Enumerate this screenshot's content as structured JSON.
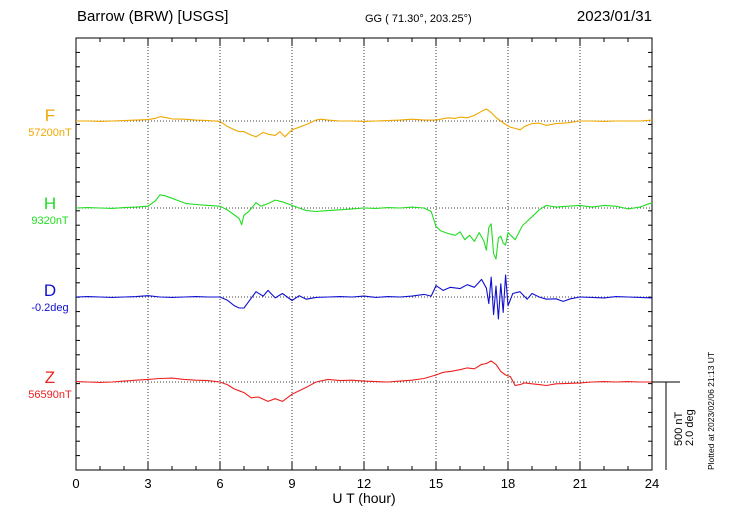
{
  "header": {
    "station": "Barrow (BRW)  [USGS]",
    "coords": "GG ( 71.30°, 203.25°)",
    "date": "2023/01/31"
  },
  "side": {
    "plotted": "Plotted at 2023/02/06 21:13 UT",
    "scale_nt": "500 nT",
    "scale_deg": "2.0 deg"
  },
  "chart_data": {
    "type": "line",
    "xlabel": "U T (hour)",
    "xlim": [
      0,
      24
    ],
    "x_ticks": [
      "0",
      "3",
      "6",
      "9",
      "12",
      "15",
      "18",
      "21",
      "24"
    ],
    "grid": true,
    "series": [
      {
        "name": "F",
        "baseline": "57200nT",
        "color": "#f0a800",
        "x": [
          0,
          0.5,
          1,
          1.5,
          2,
          2.5,
          3,
          3.3,
          3.5,
          3.8,
          4,
          4.5,
          5,
          5.5,
          6,
          6.3,
          6.6,
          6.8,
          7,
          7.3,
          7.5,
          7.8,
          8,
          8.3,
          8.5,
          8.7,
          9,
          9.3,
          9.6,
          10,
          10.2,
          10.5,
          11,
          11.5,
          12,
          12.5,
          13,
          13.5,
          14,
          14.5,
          15,
          15.2,
          15.5,
          15.8,
          16,
          16.3,
          16.6,
          16.9,
          17.1,
          17.3,
          17.5,
          17.7,
          17.9,
          18.1,
          18.3,
          18.5,
          18.7,
          19,
          19.3,
          19.6,
          20,
          20.5,
          21,
          21.5,
          22,
          22.5,
          23,
          23.5,
          24
        ],
        "values": [
          57200,
          57200,
          57198,
          57200,
          57202,
          57205,
          57208,
          57215,
          57225,
          57218,
          57212,
          57210,
          57205,
          57203,
          57198,
          57170,
          57150,
          57140,
          57140,
          57120,
          57110,
          57135,
          57125,
          57118,
          57140,
          57110,
          57150,
          57165,
          57180,
          57205,
          57210,
          57205,
          57200,
          57200,
          57198,
          57200,
          57202,
          57205,
          57210,
          57205,
          57205,
          57210,
          57218,
          57215,
          57222,
          57218,
          57232,
          57255,
          57268,
          57248,
          57220,
          57200,
          57180,
          57165,
          57158,
          57150,
          57170,
          57185,
          57188,
          57175,
          57185,
          57190,
          57200,
          57200,
          57198,
          57200,
          57200,
          57200,
          57205
        ]
      },
      {
        "name": "H",
        "baseline": "9320nT",
        "color": "#22dd22",
        "x": [
          0,
          0.5,
          1,
          1.5,
          2,
          2.5,
          3,
          3.3,
          3.5,
          3.7,
          4,
          4.3,
          4.6,
          5,
          5.5,
          6,
          6.3,
          6.6,
          6.8,
          6.9,
          7,
          7.2,
          7.5,
          7.7,
          8,
          8.3,
          8.6,
          9,
          9.3,
          9.6,
          10,
          10.5,
          11,
          11.5,
          12,
          12.5,
          13,
          13.5,
          14,
          14.5,
          14.8,
          15,
          15.2,
          15.5,
          15.8,
          16,
          16.2,
          16.4,
          16.6,
          16.8,
          17,
          17.1,
          17.2,
          17.3,
          17.4,
          17.5,
          17.6,
          17.7,
          17.8,
          17.9,
          18,
          18.3,
          18.6,
          19,
          19.3,
          19.6,
          20,
          20.5,
          21,
          21.5,
          22,
          22.5,
          23,
          23.5,
          24
        ],
        "values": [
          9320,
          9322,
          9320,
          9318,
          9322,
          9325,
          9330,
          9360,
          9395,
          9390,
          9375,
          9360,
          9345,
          9340,
          9335,
          9330,
          9310,
          9280,
          9260,
          9225,
          9280,
          9300,
          9350,
          9330,
          9345,
          9365,
          9355,
          9335,
          9320,
          9305,
          9300,
          9305,
          9310,
          9315,
          9320,
          9318,
          9322,
          9320,
          9325,
          9320,
          9300,
          9215,
          9190,
          9175,
          9165,
          9185,
          9140,
          9165,
          9130,
          9180,
          9130,
          9080,
          9210,
          9230,
          9060,
          9030,
          9150,
          9160,
          9120,
          9110,
          9180,
          9140,
          9220,
          9270,
          9310,
          9335,
          9325,
          9330,
          9335,
          9325,
          9335,
          9330,
          9315,
          9325,
          9350
        ]
      },
      {
        "name": "D",
        "baseline": "-0.2deg",
        "color": "#1010d0",
        "x": [
          0,
          0.5,
          1,
          1.5,
          2,
          2.5,
          3,
          3.5,
          4,
          4.5,
          5,
          5.5,
          6,
          6.3,
          6.6,
          6.8,
          7,
          7.2,
          7.5,
          7.8,
          8,
          8.3,
          8.6,
          9,
          9.3,
          9.6,
          10,
          10.5,
          11,
          11.5,
          12,
          12.5,
          13,
          13.5,
          14,
          14.5,
          14.8,
          15,
          15.3,
          15.6,
          16,
          16.3,
          16.6,
          16.9,
          17.1,
          17.2,
          17.3,
          17.4,
          17.5,
          17.6,
          17.7,
          17.8,
          17.9,
          18,
          18.2,
          18.5,
          18.8,
          19,
          19.3,
          19.6,
          20,
          20.3,
          20.6,
          21,
          21.5,
          22,
          22.5,
          23,
          23.5,
          24
        ],
        "values": [
          -0.2,
          -0.19,
          -0.2,
          -0.21,
          -0.2,
          -0.19,
          -0.17,
          -0.2,
          -0.21,
          -0.2,
          -0.19,
          -0.2,
          -0.2,
          -0.27,
          -0.4,
          -0.45,
          -0.45,
          -0.3,
          -0.08,
          -0.18,
          -0.05,
          -0.22,
          -0.12,
          -0.28,
          -0.17,
          -0.25,
          -0.21,
          -0.2,
          -0.19,
          -0.2,
          -0.18,
          -0.21,
          -0.19,
          -0.2,
          -0.18,
          -0.14,
          -0.18,
          0.06,
          -0.05,
          0.02,
          -0.01,
          0.08,
          0.02,
          0.2,
          0.0,
          -0.35,
          0.25,
          -0.6,
          0.05,
          -0.7,
          0.1,
          -0.55,
          0.3,
          -0.4,
          -0.12,
          -0.08,
          -0.25,
          -0.12,
          -0.2,
          -0.25,
          -0.24,
          -0.3,
          -0.24,
          -0.2,
          -0.21,
          -0.22,
          -0.19,
          -0.2,
          -0.21,
          -0.22
        ]
      },
      {
        "name": "Z",
        "baseline": "56590nT",
        "color": "#ee2020",
        "x": [
          0,
          0.5,
          1,
          1.5,
          2,
          2.5,
          3,
          3.5,
          4,
          4.5,
          5,
          5.5,
          6,
          6.3,
          6.6,
          6.8,
          7,
          7.3,
          7.6,
          8,
          8.3,
          8.6,
          9,
          9.3,
          9.6,
          10,
          10.5,
          11,
          11.5,
          12,
          12.5,
          13,
          13.5,
          14,
          14.5,
          15,
          15.3,
          15.6,
          16,
          16.3,
          16.6,
          16.9,
          17.1,
          17.3,
          17.5,
          17.7,
          17.9,
          18.1,
          18.3,
          18.5,
          18.7,
          19,
          19.3,
          19.6,
          20,
          20.5,
          21,
          21.5,
          22,
          22.5,
          23,
          23.5,
          24
        ],
        "values": [
          56592,
          56590,
          56588,
          56590,
          56595,
          56600,
          56605,
          56610,
          56612,
          56605,
          56600,
          56598,
          56590,
          56575,
          56550,
          56540,
          56530,
          56500,
          56505,
          56480,
          56495,
          56480,
          56520,
          56540,
          56560,
          56590,
          56605,
          56598,
          56600,
          56595,
          56592,
          56590,
          56595,
          56600,
          56610,
          56630,
          56645,
          56650,
          56660,
          56670,
          56665,
          56690,
          56695,
          56710,
          56690,
          56650,
          56630,
          56620,
          56570,
          56575,
          56585,
          56580,
          56575,
          56570,
          56580,
          56582,
          56585,
          56590,
          56592,
          56590,
          56592,
          56590,
          56590
        ]
      }
    ]
  }
}
